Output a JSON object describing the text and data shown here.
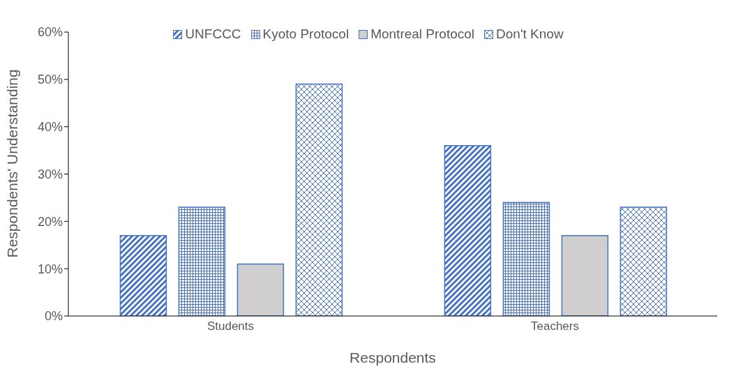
{
  "chart_data": {
    "type": "bar",
    "xlabel": "Respondents",
    "ylabel": "Respondents' Understanding",
    "categories": [
      "Students",
      "Teachers"
    ],
    "series": [
      {
        "name": "UNFCCC",
        "color": "#4472c4",
        "values": [
          17,
          36
        ]
      },
      {
        "name": "Kyoto Protocol",
        "color": "#4472c4",
        "values": [
          23,
          24
        ]
      },
      {
        "name": "Montreal Protocol",
        "color": "#d0cece",
        "values": [
          11,
          17
        ]
      },
      {
        "name": "Don't Know",
        "color": "#4472c4",
        "values": [
          49,
          23
        ]
      }
    ],
    "ylim": [
      0,
      60
    ],
    "yticks": [
      {
        "value": 0,
        "label": "0%"
      },
      {
        "value": 10,
        "label": "10%"
      },
      {
        "value": 20,
        "label": "20%"
      },
      {
        "value": 30,
        "label": "30%"
      },
      {
        "value": 40,
        "label": "40%"
      },
      {
        "value": 50,
        "label": "50%"
      },
      {
        "value": 60,
        "label": "60%"
      }
    ],
    "grid": false,
    "legend": "top"
  }
}
